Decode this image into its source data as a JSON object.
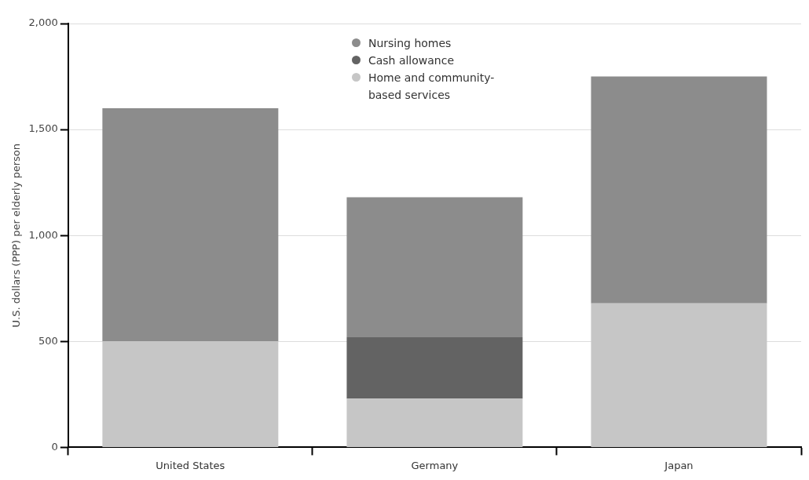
{
  "chart_data": {
    "type": "bar",
    "stacked": true,
    "ylabel": "U.S. dollars (PPP) per elderly person",
    "categories": [
      "United States",
      "Germany",
      "Japan"
    ],
    "series": [
      {
        "name": "Home and community-based services",
        "color": "#c6c6c6",
        "values": [
          500,
          230,
          680
        ]
      },
      {
        "name": "Cash allowance",
        "color": "#636363",
        "values": [
          0,
          290,
          0
        ]
      },
      {
        "name": "Nursing homes",
        "color": "#8c8c8c",
        "values": [
          1100,
          660,
          1070
        ]
      }
    ],
    "ylim": [
      0,
      2000
    ],
    "yticks": [
      0,
      500,
      {
        "value": 1000,
        "label": "1,000"
      },
      {
        "value": 1500,
        "label": "1,500"
      },
      {
        "value": 2000,
        "label": "2,000"
      }
    ],
    "grid": "y",
    "legend": "top"
  }
}
